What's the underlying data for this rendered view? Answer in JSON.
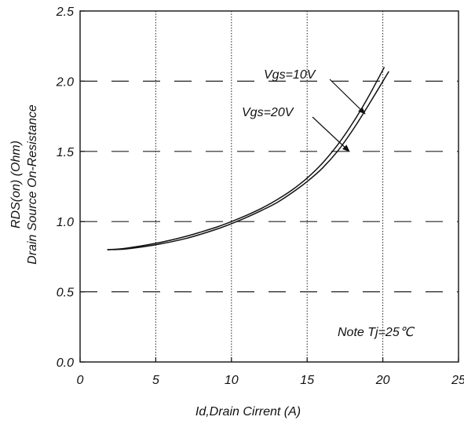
{
  "chart_data": {
    "type": "line",
    "title": "",
    "xlabel": "Id,Drain Cirrent (A)",
    "ylabel": [
      "RDS(on) (Ohm)",
      "Drain Source On-Resistance"
    ],
    "xlim": [
      0,
      25
    ],
    "ylim": [
      0,
      2.5
    ],
    "x_ticks": [
      0,
      5,
      10,
      15,
      20,
      25
    ],
    "y_ticks": [
      0.0,
      0.5,
      1.0,
      1.5,
      2.0,
      2.5
    ],
    "x_tick_labels": [
      "0",
      "5",
      "10",
      "15",
      "20",
      "25"
    ],
    "y_tick_labels": [
      "0.0",
      "0.5",
      "1.0",
      "1.5",
      "2.0",
      "2.5"
    ],
    "grid": {
      "vertical": "dotted",
      "horizontal": "dashed"
    },
    "series": [
      {
        "name": "Vgs=10V",
        "x": [
          1.8,
          3,
          5,
          7,
          9,
          10,
          11,
          12,
          13,
          14,
          15,
          16,
          17,
          18,
          19,
          20.1
        ],
        "y": [
          0.8,
          0.81,
          0.845,
          0.895,
          0.96,
          1.0,
          1.045,
          1.095,
          1.155,
          1.225,
          1.31,
          1.415,
          1.545,
          1.7,
          1.88,
          2.1
        ]
      },
      {
        "name": "Vgs=20V",
        "x": [
          1.8,
          3,
          5,
          7,
          9,
          10,
          11,
          12,
          13,
          14,
          15,
          16,
          17,
          18,
          19,
          20.4
        ],
        "y": [
          0.8,
          0.805,
          0.835,
          0.88,
          0.945,
          0.985,
          1.03,
          1.08,
          1.135,
          1.205,
          1.285,
          1.38,
          1.5,
          1.65,
          1.82,
          2.07
        ]
      }
    ],
    "annotations": [
      {
        "text": "Vgs=10V",
        "target_x": 19.1,
        "target_y": 1.72
      },
      {
        "text": "Vgs=20V",
        "target_x": 18.0,
        "target_y": 1.47
      },
      {
        "text": "Note Tj=25℃"
      }
    ]
  }
}
